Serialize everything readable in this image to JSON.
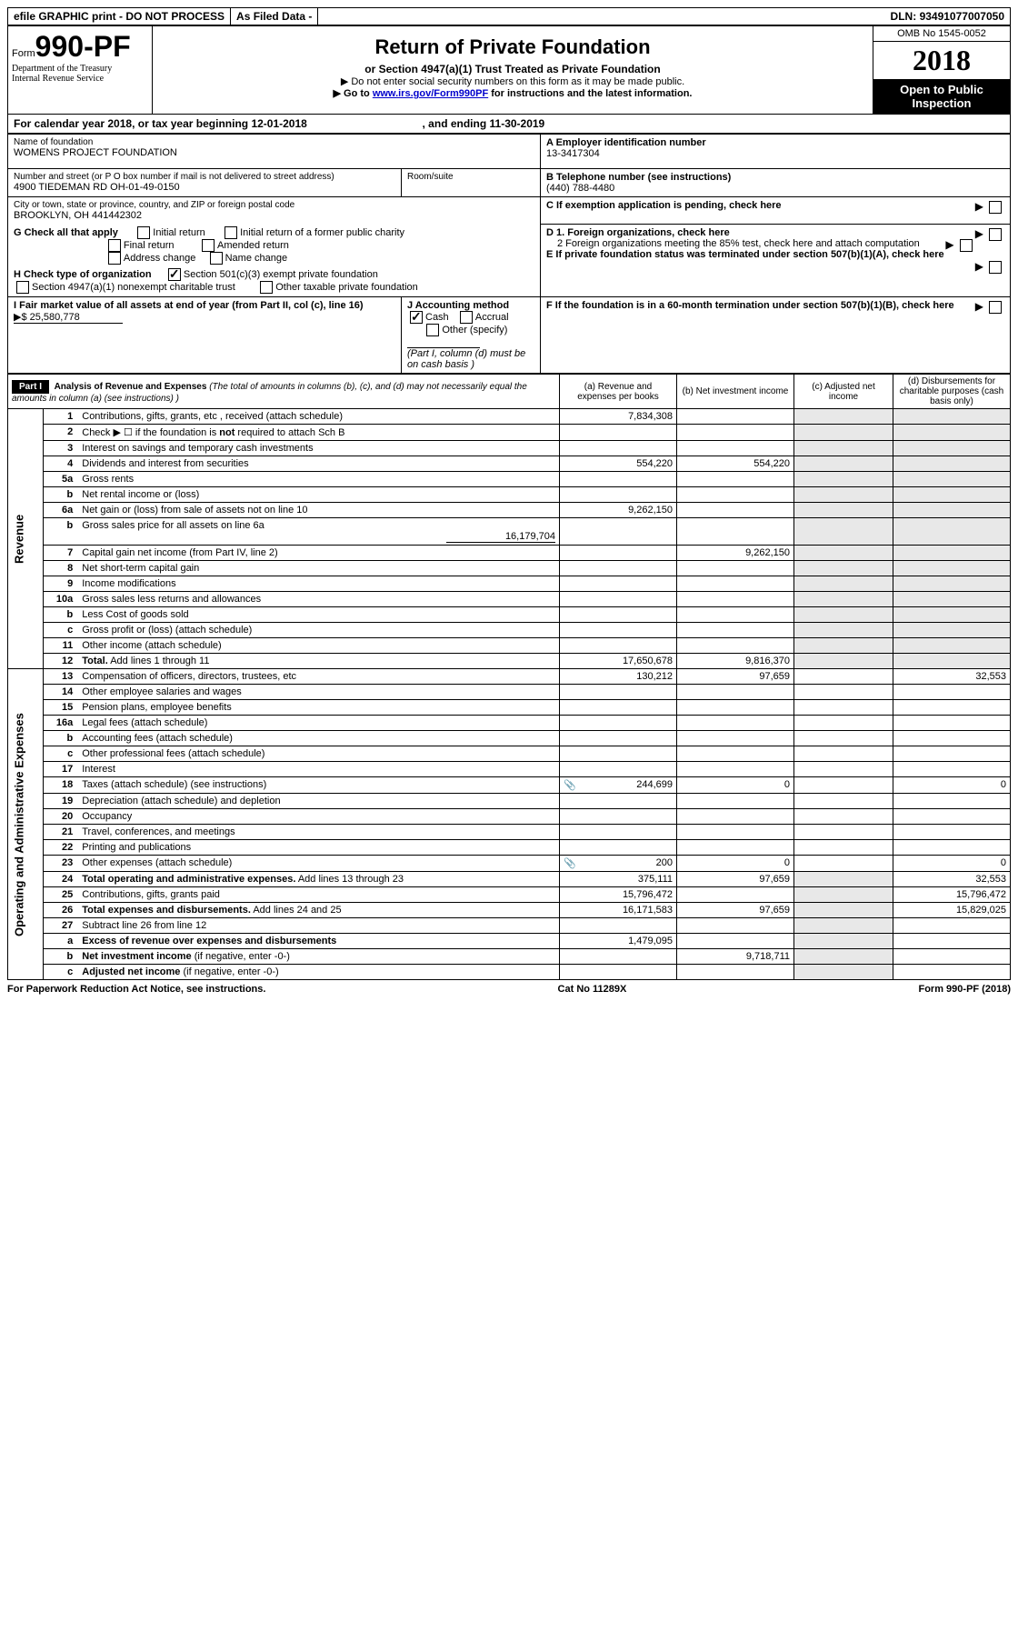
{
  "topbar": {
    "efile": "efile GRAPHIC print - DO NOT PROCESS",
    "asfiled": "As Filed Data -",
    "dln_lbl": "DLN:",
    "dln": "93491077007050"
  },
  "header": {
    "form_prefix": "Form",
    "form_no": "990-PF",
    "dept1": "Department of the Treasury",
    "dept2": "Internal Revenue Service",
    "title": "Return of Private Foundation",
    "sub": "or Section 4947(a)(1) Trust Treated as Private Foundation",
    "note1": "▶ Do not enter social security numbers on this form as it may be made public.",
    "note2_pre": "▶ Go to ",
    "note2_link": "www.irs.gov/Form990PF",
    "note2_post": " for instructions and the latest information.",
    "omb": "OMB No 1545-0052",
    "year": "2018",
    "open": "Open to Public Inspection"
  },
  "cy": {
    "text_a": "For calendar year 2018, or tax year beginning 12-01-2018",
    "text_b": ", and ending 11-30-2019"
  },
  "info": {
    "name_lbl": "Name of foundation",
    "name": "WOMENS PROJECT FOUNDATION",
    "addr_lbl": "Number and street (or P O  box number if mail is not delivered to street address)",
    "addr": "4900 TIEDEMAN RD OH-01-49-0150",
    "room_lbl": "Room/suite",
    "city_lbl": "City or town, state or province, country, and ZIP or foreign postal code",
    "city": "BROOKLYN, OH  441442302",
    "a_lbl": "A Employer identification number",
    "a_val": "13-3417304",
    "b_lbl": "B Telephone number (see instructions)",
    "b_val": "(440) 788-4480",
    "c_lbl": "C If exemption application is pending, check here",
    "g_lbl": "G Check all that apply",
    "g_opts": [
      "Initial return",
      "Initial return of a former public charity",
      "Final return",
      "Amended return",
      "Address change",
      "Name change"
    ],
    "h_lbl": "H Check type of organization",
    "h_opt1": "Section 501(c)(3) exempt private foundation",
    "h_opt2": "Section 4947(a)(1) nonexempt charitable trust",
    "h_opt3": "Other taxable private foundation",
    "d1": "D 1. Foreign organizations, check here",
    "d2": "2  Foreign organizations meeting the 85% test, check here and attach computation",
    "e": "E  If private foundation status was terminated under section 507(b)(1)(A), check here",
    "i_lbl": "I Fair market value of all assets at end of year (from Part II, col  (c), line 16)",
    "i_val": "▶$  25,580,778",
    "j_lbl": "J Accounting method",
    "j_cash": "Cash",
    "j_accrual": "Accrual",
    "j_other": "Other (specify)",
    "j_note": "(Part I, column (d) must be on cash basis )",
    "f": "F  If the foundation is in a 60-month termination under section 507(b)(1)(B), check here"
  },
  "part1": {
    "label": "Part I",
    "title": "Analysis of Revenue and Expenses",
    "title_note": "(The total of amounts in columns (b), (c), and (d) may not necessarily equal the amounts in column (a) (see instructions) )",
    "col_a": "(a)   Revenue and expenses per books",
    "col_b": "(b)  Net investment income",
    "col_c": "(c)  Adjusted net income",
    "col_d": "(d)  Disbursements for charitable purposes (cash basis only)",
    "side_rev": "Revenue",
    "side_exp": "Operating and Administrative Expenses"
  },
  "rows": [
    {
      "n": "1",
      "d": "Contributions, gifts, grants, etc , received (attach schedule)",
      "a": "7,834,308"
    },
    {
      "n": "2",
      "d": "Check ▶ ☐ if the foundation is <b>not</b> required to attach Sch  B"
    },
    {
      "n": "3",
      "d": "Interest on savings and temporary cash investments"
    },
    {
      "n": "4",
      "d": "Dividends and interest from securities",
      "a": "554,220",
      "b": "554,220"
    },
    {
      "n": "5a",
      "d": "Gross rents"
    },
    {
      "n": "b",
      "d": "Net rental income or (loss)"
    },
    {
      "n": "6a",
      "d": "Net gain or (loss) from sale of assets not on line 10",
      "a": "9,262,150"
    },
    {
      "n": "b",
      "d": "Gross sales price for all assets on line 6a",
      "inline": "16,179,704"
    },
    {
      "n": "7",
      "d": "Capital gain net income (from Part IV, line 2)",
      "b": "9,262,150"
    },
    {
      "n": "8",
      "d": "Net short-term capital gain"
    },
    {
      "n": "9",
      "d": "Income modifications"
    },
    {
      "n": "10a",
      "d": "Gross sales less returns and allowances"
    },
    {
      "n": "b",
      "d": "Less  Cost of goods sold"
    },
    {
      "n": "c",
      "d": "Gross profit or (loss) (attach schedule)"
    },
    {
      "n": "11",
      "d": "Other income (attach schedule)"
    },
    {
      "n": "12",
      "d": "<b>Total.</b> Add lines 1 through 11",
      "a": "17,650,678",
      "b": "9,816,370"
    }
  ],
  "exp_rows": [
    {
      "n": "13",
      "d": "Compensation of officers, directors, trustees, etc",
      "a": "130,212",
      "b": "97,659",
      "dd": "32,553"
    },
    {
      "n": "14",
      "d": "Other employee salaries and wages"
    },
    {
      "n": "15",
      "d": "Pension plans, employee benefits"
    },
    {
      "n": "16a",
      "d": "Legal fees (attach schedule)"
    },
    {
      "n": "b",
      "d": "Accounting fees (attach schedule)"
    },
    {
      "n": "c",
      "d": "Other professional fees (attach schedule)"
    },
    {
      "n": "17",
      "d": "Interest"
    },
    {
      "n": "18",
      "d": "Taxes (attach schedule) (see instructions)",
      "a": "244,699",
      "b": "0",
      "dd": "0",
      "icon": true
    },
    {
      "n": "19",
      "d": "Depreciation (attach schedule) and depletion"
    },
    {
      "n": "20",
      "d": "Occupancy"
    },
    {
      "n": "21",
      "d": "Travel, conferences, and meetings"
    },
    {
      "n": "22",
      "d": "Printing and publications"
    },
    {
      "n": "23",
      "d": "Other expenses (attach schedule)",
      "a": "200",
      "b": "0",
      "dd": "0",
      "icon": true
    },
    {
      "n": "24",
      "d": "<b>Total operating and administrative expenses.</b> Add lines 13 through 23",
      "a": "375,111",
      "b": "97,659",
      "dd": "32,553"
    },
    {
      "n": "25",
      "d": "Contributions, gifts, grants paid",
      "a": "15,796,472",
      "dd": "15,796,472"
    },
    {
      "n": "26",
      "d": "<b>Total expenses and disbursements.</b> Add lines 24 and 25",
      "a": "16,171,583",
      "b": "97,659",
      "dd": "15,829,025"
    },
    {
      "n": "27",
      "d": "Subtract line 26 from line 12"
    },
    {
      "n": "a",
      "d": "<b>Excess of revenue over expenses and disbursements</b>",
      "a": "1,479,095"
    },
    {
      "n": "b",
      "d": "<b>Net investment income</b> (if negative, enter -0-)",
      "b": "9,718,711"
    },
    {
      "n": "c",
      "d": "<b>Adjusted net income</b> (if negative, enter -0-)"
    }
  ],
  "footer": {
    "left": "For Paperwork Reduction Act Notice, see instructions.",
    "mid": "Cat  No  11289X",
    "right": "Form 990-PF (2018)"
  }
}
